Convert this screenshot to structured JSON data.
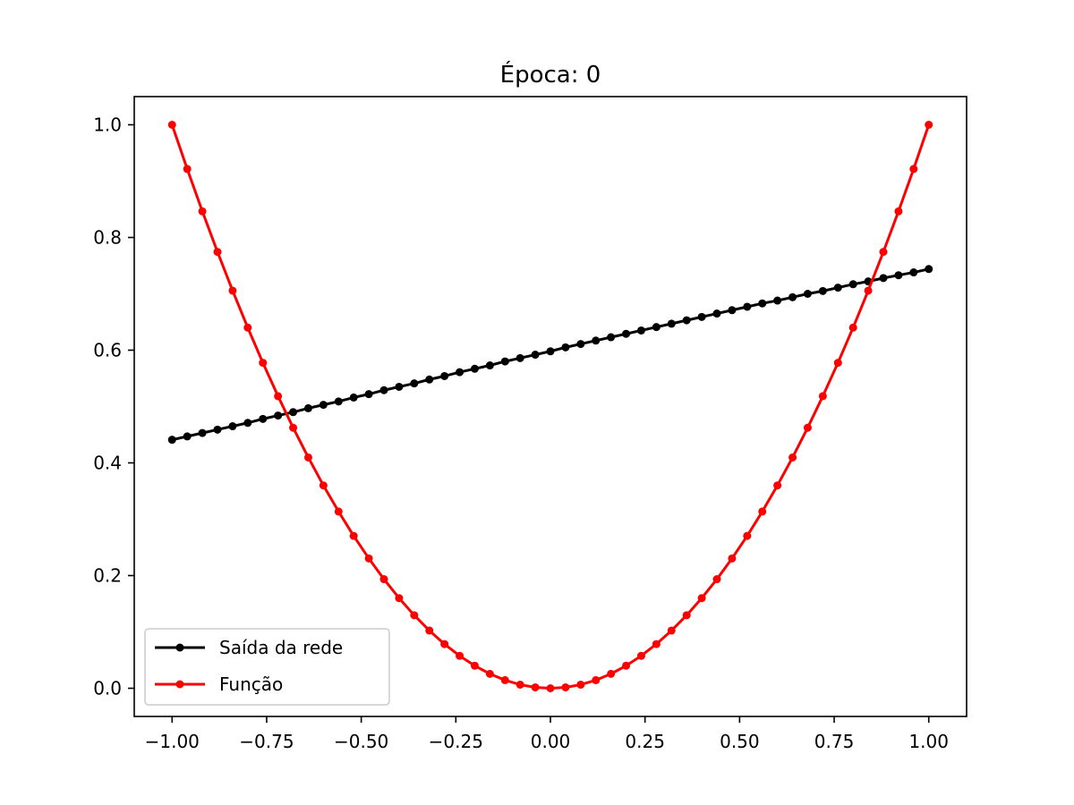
{
  "chart_data": {
    "type": "line",
    "title": "Época: 0",
    "xlabel": "",
    "ylabel": "",
    "xlim": [
      -1.1,
      1.1
    ],
    "ylim": [
      -0.05,
      1.05
    ],
    "grid": false,
    "legend_placement": "lower-left",
    "x_ticks": [
      -1.0,
      -0.75,
      -0.5,
      -0.25,
      0.0,
      0.25,
      0.5,
      0.75,
      1.0
    ],
    "x_tick_labels": [
      "−1.00",
      "−0.75",
      "−0.50",
      "−0.25",
      "0.00",
      "0.25",
      "0.50",
      "0.75",
      "1.00"
    ],
    "y_ticks": [
      0.0,
      0.2,
      0.4,
      0.6,
      0.8,
      1.0
    ],
    "y_tick_labels": [
      "0.0",
      "0.2",
      "0.4",
      "0.6",
      "0.8",
      "1.0"
    ],
    "series": [
      {
        "name": "Saída da rede",
        "color": "#000000",
        "x": [
          -1.0,
          -0.96,
          -0.92,
          -0.88,
          -0.84,
          -0.8,
          -0.76,
          -0.72,
          -0.68,
          -0.64,
          -0.6,
          -0.56,
          -0.52,
          -0.48,
          -0.44,
          -0.4,
          -0.36,
          -0.32,
          -0.28,
          -0.24,
          -0.2,
          -0.16,
          -0.12,
          -0.08,
          -0.04,
          0.0,
          0.04,
          0.08,
          0.12,
          0.16,
          0.2,
          0.24,
          0.28,
          0.32,
          0.36,
          0.4,
          0.44,
          0.48,
          0.52,
          0.56,
          0.6,
          0.64,
          0.68,
          0.72,
          0.76,
          0.8,
          0.84,
          0.88,
          0.92,
          0.96,
          1.0
        ],
        "y": [
          0.441,
          0.447,
          0.453,
          0.459,
          0.465,
          0.471,
          0.478,
          0.484,
          0.49,
          0.497,
          0.503,
          0.509,
          0.516,
          0.522,
          0.529,
          0.535,
          0.541,
          0.548,
          0.554,
          0.561,
          0.567,
          0.573,
          0.58,
          0.586,
          0.592,
          0.598,
          0.605,
          0.611,
          0.617,
          0.623,
          0.629,
          0.635,
          0.641,
          0.647,
          0.653,
          0.659,
          0.665,
          0.671,
          0.677,
          0.683,
          0.688,
          0.694,
          0.7,
          0.705,
          0.711,
          0.717,
          0.722,
          0.728,
          0.733,
          0.738,
          0.744
        ]
      },
      {
        "name": "Função",
        "color": "#ff0000",
        "x": [
          -1.0,
          -0.96,
          -0.92,
          -0.88,
          -0.84,
          -0.8,
          -0.76,
          -0.72,
          -0.68,
          -0.64,
          -0.6,
          -0.56,
          -0.52,
          -0.48,
          -0.44,
          -0.4,
          -0.36,
          -0.32,
          -0.28,
          -0.24,
          -0.2,
          -0.16,
          -0.12,
          -0.08,
          -0.04,
          0.0,
          0.04,
          0.08,
          0.12,
          0.16,
          0.2,
          0.24,
          0.28,
          0.32,
          0.36,
          0.4,
          0.44,
          0.48,
          0.52,
          0.56,
          0.6,
          0.64,
          0.68,
          0.72,
          0.76,
          0.8,
          0.84,
          0.88,
          0.92,
          0.96,
          1.0
        ],
        "y": [
          1.0,
          0.9216,
          0.8464,
          0.7744,
          0.7056,
          0.64,
          0.5776,
          0.5184,
          0.4624,
          0.4096,
          0.36,
          0.3136,
          0.2704,
          0.2304,
          0.1936,
          0.16,
          0.1296,
          0.1024,
          0.0784,
          0.0576,
          0.04,
          0.0256,
          0.0144,
          0.0064,
          0.0016,
          0.0,
          0.0016,
          0.0064,
          0.0144,
          0.0256,
          0.04,
          0.0576,
          0.0784,
          0.1024,
          0.1296,
          0.16,
          0.1936,
          0.2304,
          0.2704,
          0.3136,
          0.36,
          0.4096,
          0.4624,
          0.5184,
          0.5776,
          0.64,
          0.7056,
          0.7744,
          0.8464,
          0.9216,
          1.0
        ]
      }
    ]
  }
}
